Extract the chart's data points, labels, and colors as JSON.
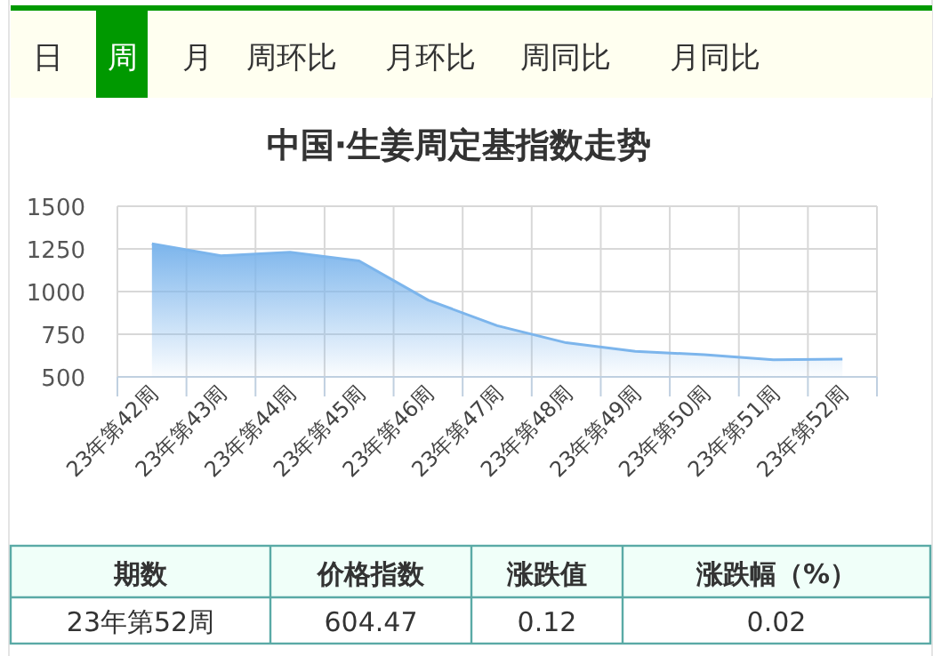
{
  "chart_data": {
    "type": "area",
    "title": "中国·生姜周定基指数走势",
    "categories": [
      "23年第42周",
      "23年第43周",
      "23年第44周",
      "23年第45周",
      "23年第46周",
      "23年第47周",
      "23年第48周",
      "23年第49周",
      "23年第50周",
      "23年第51周",
      "23年第52周"
    ],
    "values": [
      1280,
      1210,
      1230,
      1180,
      950,
      800,
      700,
      650,
      630,
      600,
      604.47
    ],
    "color": "#7cb5ec",
    "ylim": [
      500,
      1500
    ],
    "yticks": [
      500,
      750,
      1000,
      1250,
      1500
    ],
    "grid": true,
    "marker": "none",
    "line_style": "solid",
    "annotations": [
      "日",
      "周",
      "月",
      "周环比",
      "月环比",
      "周同比",
      "月同比",
      "期数",
      "价格指数",
      "涨跌值",
      "涨跌幅（%）",
      "23年第52周",
      "604.47",
      "0.12",
      "0.02"
    ]
  }
}
